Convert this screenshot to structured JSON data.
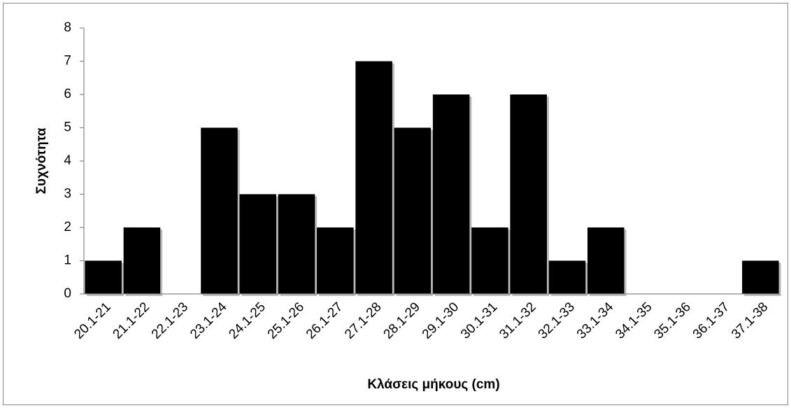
{
  "chart_data": {
    "type": "bar",
    "x_label": "Κλάσεις μήκους (cm)",
    "y_label": "Συχνότητα",
    "categories": [
      "20.1-21",
      "21.1-22",
      "22.1-23",
      "23.1-24",
      "24.1-25",
      "25.1-26",
      "26.1-27",
      "27.1-28",
      "28.1-29",
      "29.1-30",
      "30.1-31",
      "31.1-32",
      "32.1-33",
      "33.1-34",
      "34.1-35",
      "35.1-36",
      "36.1-37",
      "37.1-38"
    ],
    "values": [
      1,
      2,
      0,
      5,
      3,
      3,
      2,
      7,
      5,
      6,
      2,
      6,
      1,
      2,
      0,
      0,
      0,
      1
    ],
    "color": "#000000",
    "ylim": [
      0,
      8
    ],
    "yticks": [
      0,
      1,
      2,
      3,
      4,
      5,
      6,
      7,
      8
    ],
    "grid": false
  }
}
